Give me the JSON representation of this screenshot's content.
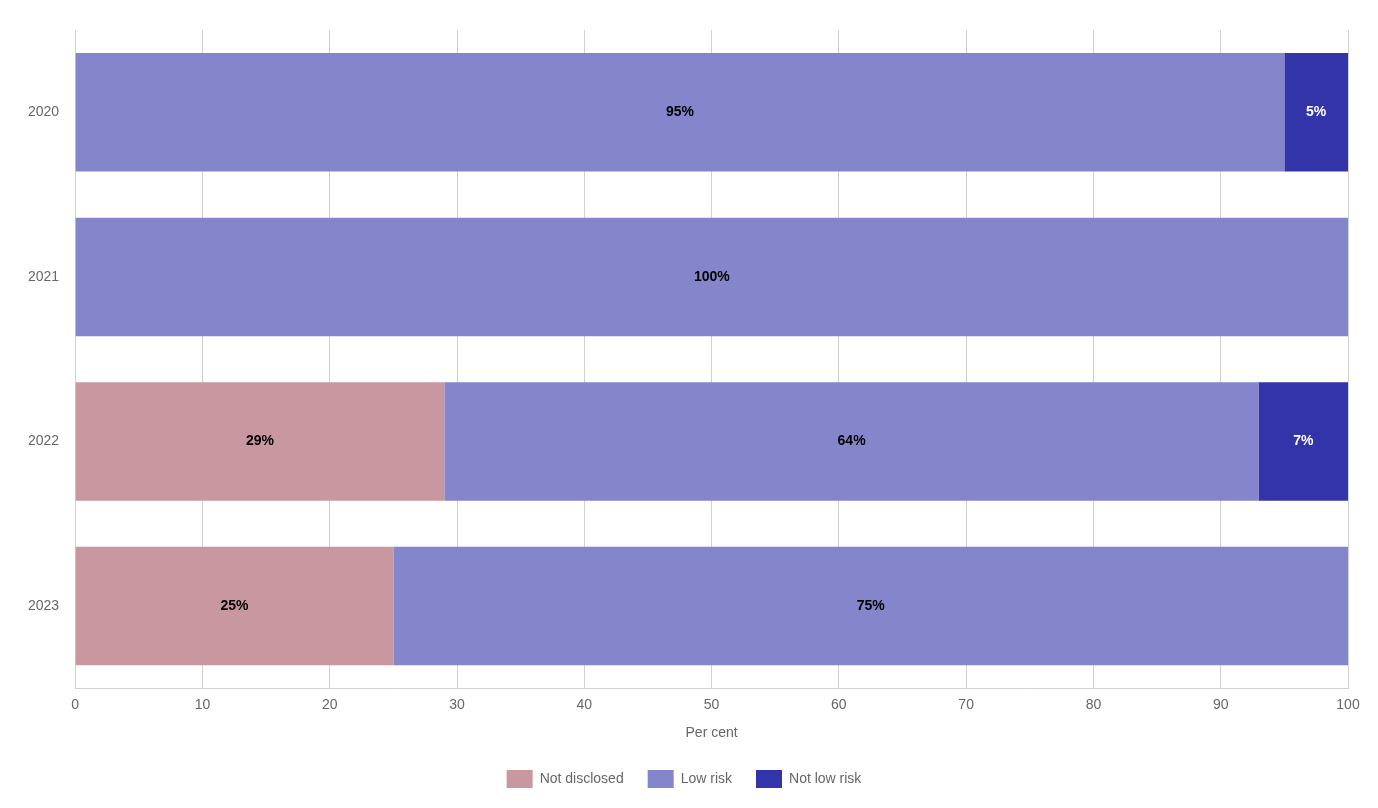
{
  "chart_data": {
    "type": "bar",
    "orientation": "horizontal",
    "stacked": true,
    "categories": [
      "2020",
      "2021",
      "2022",
      "2023"
    ],
    "series": [
      {
        "name": "Not disclosed",
        "color": "#c9979f",
        "values": [
          0,
          0,
          29,
          25
        ],
        "value_labels": [
          null,
          null,
          "29%",
          "25%"
        ]
      },
      {
        "name": "Low risk",
        "color": "#8585cc",
        "values": [
          95,
          100,
          64,
          75
        ],
        "value_labels": [
          "95%",
          "100%",
          "64%",
          "75%"
        ]
      },
      {
        "name": "Not low risk",
        "color": "#3333aa",
        "values": [
          5,
          0,
          7,
          0
        ],
        "value_labels": [
          "5%",
          null,
          "7%",
          null
        ]
      }
    ],
    "xlabel": "Per cent",
    "xlim": [
      0,
      100
    ],
    "xticks": [
      0,
      10,
      20,
      30,
      40,
      50,
      60,
      70,
      80,
      90,
      100
    ],
    "grid": true,
    "legend": "bottom",
    "data_labels": true
  }
}
